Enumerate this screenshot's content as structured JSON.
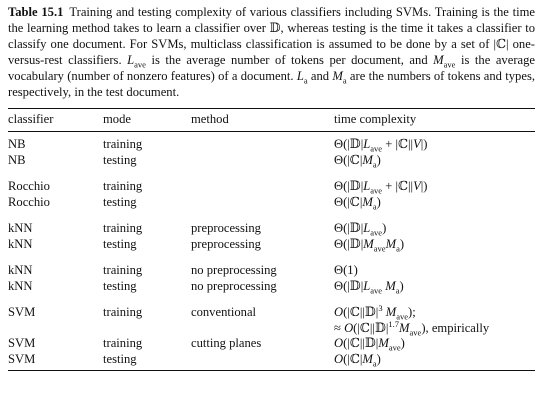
{
  "caption": {
    "label": "Table 15.1",
    "text": "Training and testing complexity of various classifiers including SVMs. Training is the time the learning method takes to learn a classifier over 𝔻, whereas testing is the time it takes a classifier to classify one document. For SVMs, multiclass classification is assumed to be done by a set of |ℂ| one-versus-rest classifiers. Lave is the average number of tokens per document, and Mave is the average vocabulary (number of nonzero features) of a document. La and Ma are the numbers of tokens and types, respectively, in the test document."
  },
  "headers": [
    "classifier",
    "mode",
    "method",
    "time complexity"
  ],
  "rows": [
    {
      "classifier": "NB",
      "mode": "training",
      "method": "",
      "complexity": "Θ(|𝔻|Lave + |ℂ||V|)"
    },
    {
      "classifier": "NB",
      "mode": "testing",
      "method": "",
      "complexity": "Θ(|ℂ|Ma)"
    },
    {
      "classifier": "Rocchio",
      "mode": "training",
      "method": "",
      "complexity": "Θ(|𝔻|Lave + |ℂ||V|)"
    },
    {
      "classifier": "Rocchio",
      "mode": "testing",
      "method": "",
      "complexity": "Θ(|ℂ|Ma)"
    },
    {
      "classifier": "kNN",
      "mode": "training",
      "method": "preprocessing",
      "complexity": "Θ(|𝔻|Lave)"
    },
    {
      "classifier": "kNN",
      "mode": "testing",
      "method": "preprocessing",
      "complexity": "Θ(|𝔻|MaveMa)"
    },
    {
      "classifier": "kNN",
      "mode": "training",
      "method": "no preprocessing",
      "complexity": "Θ(1)"
    },
    {
      "classifier": "kNN",
      "mode": "testing",
      "method": "no preprocessing",
      "complexity": "Θ(|𝔻|Lave Ma)"
    },
    {
      "classifier": "SVM",
      "mode": "training",
      "method": "conventional",
      "complexity": "O(|ℂ||𝔻|3 Mave);"
    },
    {
      "classifier": "",
      "mode": "",
      "method": "",
      "complexity": "≈ O(|ℂ||𝔻|1.7Mave), empirically"
    },
    {
      "classifier": "SVM",
      "mode": "training",
      "method": "cutting planes",
      "complexity": "O(|ℂ||𝔻|Mave)"
    },
    {
      "classifier": "SVM",
      "mode": "testing",
      "method": "",
      "complexity": "O(|ℂ|Ma)"
    }
  ]
}
